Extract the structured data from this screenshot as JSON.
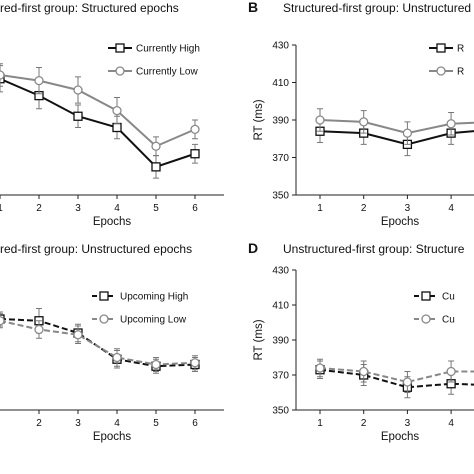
{
  "colors": {
    "dark": "#111111",
    "grey": "#888888",
    "errorbar": "#777777",
    "axis": "#222222"
  },
  "chart_data": [
    {
      "type": "line",
      "letter": "",
      "title": "red-first group: Structured epochs",
      "xlabel": "Epochs",
      "ylabel": "",
      "x": [
        1,
        2,
        3,
        4,
        5,
        6
      ],
      "x_ticks": [
        "1",
        "2",
        "3",
        "4",
        "5",
        "6"
      ],
      "y_ticks": [],
      "ylim": [
        350,
        430
      ],
      "series": [
        {
          "name": "Currently High",
          "values": [
            412,
            403,
            392,
            386,
            365,
            372
          ],
          "errors": [
            7,
            7,
            6,
            6,
            6,
            5
          ],
          "color": "#111111",
          "dashed": false,
          "marker": "square"
        },
        {
          "name": "Currently Low",
          "values": [
            414,
            411,
            406,
            395,
            376,
            385
          ],
          "errors": [
            6,
            7,
            7,
            7,
            5,
            5
          ],
          "color": "#888888",
          "dashed": false,
          "marker": "circle"
        }
      ],
      "legend": "top-right"
    },
    {
      "type": "line",
      "letter": "B",
      "title": "Structured-first group: Unstructured",
      "xlabel": "Epochs",
      "ylabel": "RT (ms)",
      "x": [
        1,
        2,
        3,
        4,
        5,
        6
      ],
      "x_ticks": [
        "1",
        "2",
        "3",
        "4"
      ],
      "y_ticks": [
        "350",
        "370",
        "390",
        "410",
        "430"
      ],
      "ylim": [
        350,
        430
      ],
      "series": [
        {
          "name": "R",
          "values": [
            384,
            383,
            377,
            383,
            385,
            386
          ],
          "errors": [
            6,
            6,
            6,
            6,
            6,
            6
          ],
          "color": "#111111",
          "dashed": false,
          "marker": "square"
        },
        {
          "name": "R",
          "values": [
            390,
            389,
            383,
            388,
            389,
            391
          ],
          "errors": [
            6,
            6,
            6,
            6,
            6,
            6
          ],
          "color": "#888888",
          "dashed": false,
          "marker": "circle"
        }
      ],
      "legend": "top-right"
    },
    {
      "type": "line",
      "letter": "",
      "title": "red-first group: Unstructured epochs",
      "xlabel": "Epochs",
      "ylabel": "",
      "x": [
        1,
        2,
        3,
        4,
        5,
        6
      ],
      "x_ticks": [
        "2",
        "3",
        "4",
        "5",
        "6"
      ],
      "y_ticks": [],
      "ylim": [
        350,
        430
      ],
      "series": [
        {
          "name": "Upcoming High",
          "values": [
            402,
            401,
            394,
            379,
            375,
            376
          ],
          "errors": [
            4,
            7,
            5,
            5,
            4,
            4
          ],
          "color": "#111111",
          "dashed": true,
          "marker": "square"
        },
        {
          "name": "Upcoming Low",
          "values": [
            401,
            396,
            393,
            380,
            376,
            377
          ],
          "errors": [
            4,
            5,
            5,
            5,
            4,
            4
          ],
          "color": "#888888",
          "dashed": true,
          "marker": "circle"
        }
      ],
      "legend": "top-right"
    },
    {
      "type": "line",
      "letter": "D",
      "title": "Unstructured-first group: Structure",
      "xlabel": "Epochs",
      "ylabel": "RT (ms)",
      "x": [
        1,
        2,
        3,
        4,
        5,
        6
      ],
      "x_ticks": [
        "1",
        "2",
        "3",
        "4"
      ],
      "y_ticks": [
        "350",
        "370",
        "390",
        "410",
        "430"
      ],
      "ylim": [
        350,
        430
      ],
      "series": [
        {
          "name": "Cu",
          "values": [
            373,
            370,
            363,
            365,
            364,
            365
          ],
          "errors": [
            5,
            6,
            6,
            6,
            6,
            6
          ],
          "color": "#111111",
          "dashed": true,
          "marker": "square"
        },
        {
          "name": "Cu",
          "values": [
            374,
            372,
            366,
            372,
            372,
            373
          ],
          "errors": [
            5,
            6,
            6,
            6,
            6,
            6
          ],
          "color": "#888888",
          "dashed": true,
          "marker": "circle"
        }
      ],
      "legend": "top-right"
    }
  ]
}
